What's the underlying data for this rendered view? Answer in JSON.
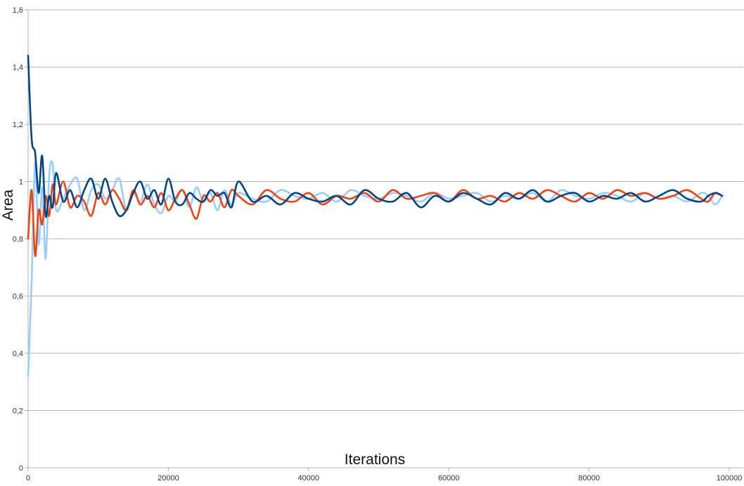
{
  "chart_data": {
    "type": "line",
    "title": "",
    "xlabel": "Iterations",
    "ylabel": "Area",
    "xlim": [
      0,
      102000
    ],
    "ylim": [
      0,
      1.6
    ],
    "x_ticks": [
      0,
      20000,
      40000,
      60000,
      80000,
      100000
    ],
    "x_tick_labels": [
      "0",
      "20000",
      "40000",
      "60000",
      "80000",
      "100000"
    ],
    "y_ticks": [
      0,
      0.2,
      0.4,
      0.6,
      0.8,
      1.0,
      1.2,
      1.4,
      1.6
    ],
    "y_tick_labels": [
      "0",
      "0,2",
      "0,4",
      "0,6",
      "0,8",
      "1",
      "1,2",
      "1,4",
      "1,6"
    ],
    "grid": "horizontal",
    "legend": "none",
    "colors": [
      "#99ccff",
      "#ee4411",
      "#004586"
    ],
    "series": [
      {
        "color": "#99ccff",
        "x": [
          0,
          500,
          1000,
          1500,
          2000,
          2500,
          3000,
          3500,
          4000,
          5000,
          6000,
          7000,
          8000,
          9000,
          10000,
          11000,
          12000,
          13000,
          14000,
          15000,
          16000,
          17000,
          18000,
          19000,
          20000,
          21000,
          22000,
          23000,
          24000,
          25000,
          26000,
          27000,
          28000,
          29000,
          30000,
          32000,
          34000,
          36000,
          38000,
          40000,
          42000,
          44000,
          46000,
          48000,
          50000,
          52000,
          54000,
          56000,
          58000,
          60000,
          62000,
          64000,
          66000,
          68000,
          70000,
          72000,
          74000,
          76000,
          78000,
          80000,
          82000,
          84000,
          86000,
          88000,
          90000,
          92000,
          94000,
          96000,
          97000,
          98000,
          99000
        ],
        "values": [
          0.32,
          0.65,
          1.07,
          0.78,
          0.98,
          0.73,
          1.02,
          1.06,
          0.9,
          0.94,
          0.99,
          1.01,
          0.9,
          0.97,
          0.99,
          0.94,
          0.97,
          1.01,
          0.9,
          0.96,
          0.93,
          0.99,
          0.92,
          0.89,
          0.95,
          0.93,
          0.97,
          0.91,
          0.98,
          0.93,
          0.96,
          0.9,
          0.97,
          0.92,
          0.96,
          0.94,
          0.93,
          0.97,
          0.95,
          0.94,
          0.96,
          0.93,
          0.97,
          0.95,
          0.94,
          0.96,
          0.95,
          0.93,
          0.96,
          0.94,
          0.95,
          0.96,
          0.93,
          0.95,
          0.94,
          0.96,
          0.93,
          0.97,
          0.95,
          0.94,
          0.96,
          0.95,
          0.93,
          0.96,
          0.94,
          0.95,
          0.93,
          0.96,
          0.95,
          0.92,
          0.95
        ]
      },
      {
        "color": "#ee4411",
        "x": [
          0,
          500,
          1000,
          1500,
          2000,
          2500,
          3000,
          3500,
          4000,
          5000,
          6000,
          7000,
          8000,
          9000,
          10000,
          11000,
          12000,
          13000,
          14000,
          15000,
          16000,
          17000,
          18000,
          19000,
          20000,
          21000,
          22000,
          23000,
          24000,
          25000,
          26000,
          27000,
          28000,
          29000,
          30000,
          32000,
          34000,
          36000,
          38000,
          40000,
          42000,
          44000,
          46000,
          48000,
          50000,
          52000,
          54000,
          56000,
          58000,
          60000,
          62000,
          64000,
          66000,
          68000,
          70000,
          72000,
          74000,
          76000,
          78000,
          80000,
          82000,
          84000,
          86000,
          88000,
          90000,
          92000,
          94000,
          96000,
          97000,
          98000,
          99000
        ],
        "values": [
          0.8,
          0.97,
          0.74,
          0.9,
          0.85,
          0.95,
          0.88,
          0.99,
          0.92,
          1.0,
          0.91,
          0.95,
          0.93,
          0.88,
          0.96,
          0.92,
          0.97,
          0.94,
          0.9,
          0.97,
          0.92,
          0.95,
          0.91,
          0.96,
          0.9,
          0.94,
          0.97,
          0.92,
          0.87,
          0.95,
          0.93,
          0.96,
          0.91,
          0.97,
          0.95,
          0.92,
          0.97,
          0.94,
          0.93,
          0.96,
          0.92,
          0.95,
          0.94,
          0.96,
          0.93,
          0.97,
          0.94,
          0.95,
          0.96,
          0.93,
          0.97,
          0.94,
          0.95,
          0.93,
          0.96,
          0.94,
          0.97,
          0.95,
          0.93,
          0.96,
          0.94,
          0.97,
          0.95,
          0.96,
          0.94,
          0.95,
          0.97,
          0.94,
          0.93,
          0.96,
          0.95
        ]
      },
      {
        "color": "#004586",
        "x": [
          0,
          500,
          1000,
          1500,
          2000,
          2500,
          3000,
          3500,
          4000,
          5000,
          6000,
          7000,
          8000,
          9000,
          10000,
          11000,
          12000,
          13000,
          14000,
          15000,
          16000,
          17000,
          18000,
          19000,
          20000,
          21000,
          22000,
          23000,
          24000,
          25000,
          26000,
          27000,
          28000,
          29000,
          30000,
          32000,
          34000,
          36000,
          38000,
          40000,
          42000,
          44000,
          46000,
          48000,
          50000,
          52000,
          54000,
          56000,
          58000,
          60000,
          62000,
          64000,
          66000,
          68000,
          70000,
          72000,
          74000,
          76000,
          78000,
          80000,
          82000,
          84000,
          86000,
          88000,
          90000,
          92000,
          94000,
          96000,
          97000,
          98000,
          99000
        ],
        "values": [
          1.44,
          1.15,
          1.1,
          0.96,
          1.09,
          0.88,
          0.95,
          0.91,
          1.03,
          0.93,
          0.97,
          0.91,
          0.97,
          1.01,
          0.94,
          1.01,
          0.93,
          0.88,
          0.9,
          0.96,
          1.0,
          0.94,
          0.97,
          0.92,
          1.01,
          0.93,
          0.92,
          0.96,
          0.94,
          0.93,
          0.97,
          0.95,
          0.96,
          0.91,
          1.0,
          0.93,
          0.95,
          0.92,
          0.96,
          0.94,
          0.93,
          0.95,
          0.92,
          0.97,
          0.94,
          0.93,
          0.96,
          0.91,
          0.95,
          0.93,
          0.96,
          0.94,
          0.92,
          0.96,
          0.94,
          0.97,
          0.93,
          0.95,
          0.96,
          0.93,
          0.95,
          0.94,
          0.96,
          0.93,
          0.95,
          0.97,
          0.94,
          0.93,
          0.95,
          0.96,
          0.95
        ]
      }
    ]
  }
}
